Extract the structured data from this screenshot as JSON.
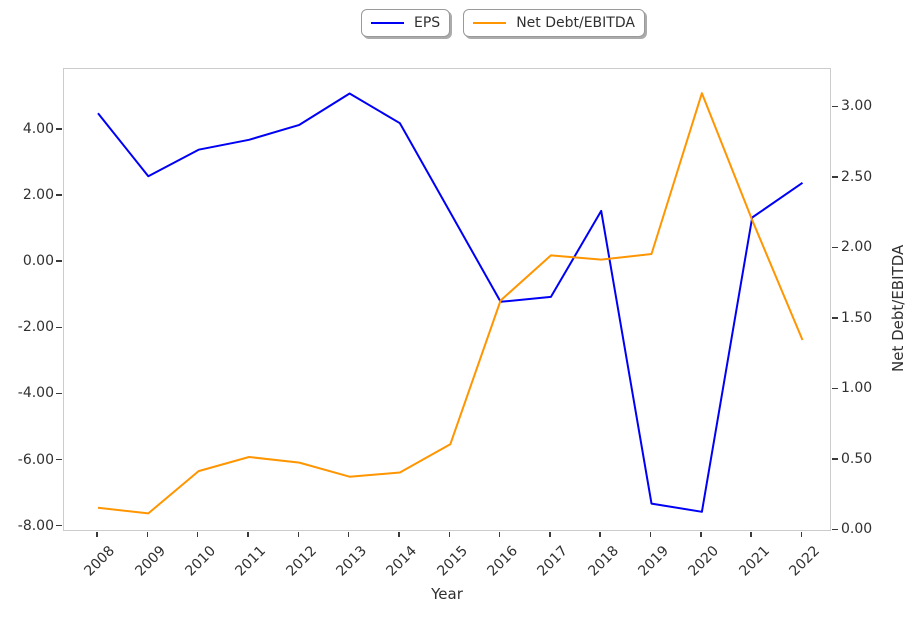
{
  "figure": {
    "xlabel": "Year",
    "ylabel_right": "Net Debt/EBITDA"
  },
  "chart_data": {
    "type": "line",
    "title": "",
    "xlabel": "Year",
    "ylabel_left": "",
    "ylabel_right": "Net Debt/EBITDA",
    "grid": false,
    "legend_position": "top-center",
    "x": [
      "2008",
      "2009",
      "2010",
      "2011",
      "2012",
      "2013",
      "2014",
      "2015",
      "2016",
      "2017",
      "2018",
      "2019",
      "2020",
      "2021",
      "2022"
    ],
    "series": [
      {
        "name": "EPS",
        "axis": "left",
        "color": "#0000f5",
        "values": [
          4.5,
          2.6,
          3.4,
          3.7,
          4.15,
          5.1,
          4.2,
          1.5,
          -1.2,
          -1.05,
          1.55,
          -7.3,
          -7.55,
          1.35,
          2.4
        ]
      },
      {
        "name": "Net Debt/EBITDA",
        "axis": "right",
        "color": "#ff9500",
        "values": [
          0.16,
          0.12,
          0.42,
          0.52,
          0.48,
          0.38,
          0.41,
          0.61,
          1.63,
          1.95,
          1.92,
          1.96,
          3.1,
          2.2,
          1.35
        ]
      }
    ],
    "axes": {
      "left": {
        "range": [
          -8.16,
          5.84
        ],
        "ticks": [
          {
            "label": "4.00",
            "value": 4
          },
          {
            "label": "2.00",
            "value": 2
          },
          {
            "label": "0.00",
            "value": 0
          },
          {
            "label": "-2.00",
            "value": -2
          },
          {
            "label": "-4.00",
            "value": -4
          },
          {
            "label": "-6.00",
            "value": -6
          },
          {
            "label": "-8.00",
            "value": -8
          }
        ]
      },
      "right": {
        "range": [
          -0.012,
          3.272
        ],
        "ticks": [
          {
            "label": "3.00",
            "value": 3
          },
          {
            "label": "2.50",
            "value": 2.5
          },
          {
            "label": "2.00",
            "value": 2
          },
          {
            "label": "1.50",
            "value": 1.5
          },
          {
            "label": "1.00",
            "value": 1
          },
          {
            "label": "0.50",
            "value": 0.5
          },
          {
            "label": "0.00",
            "value": 0
          }
        ]
      }
    }
  }
}
